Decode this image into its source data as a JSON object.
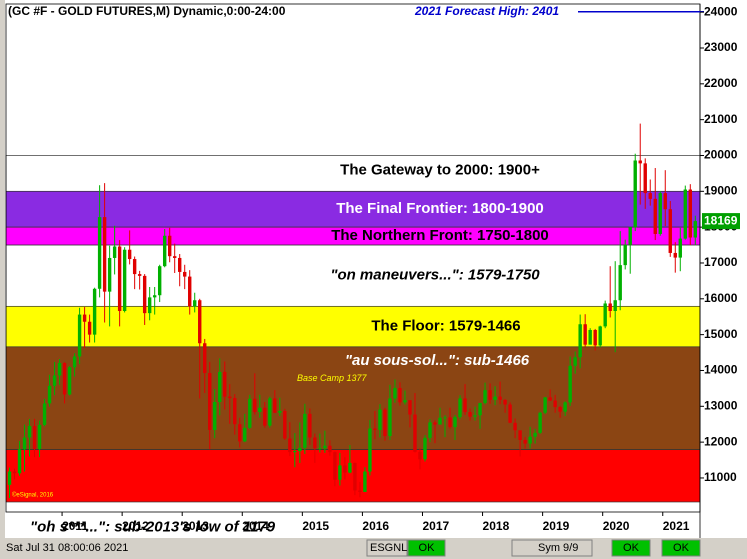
{
  "chart_data": {
    "type": "candlestick",
    "title": "(GC #F - GOLD FUTURES,M) Dynamic,0:00-24:00",
    "source": "©eSignal, 2016",
    "xlim": [
      2010,
      2021.62
    ],
    "xticks": [
      2011,
      2012,
      2013,
      2014,
      2015,
      2016,
      2017,
      2018,
      2019,
      2020,
      2021
    ],
    "ylim": [
      10050,
      24200
    ],
    "yticks": [
      11000,
      12000,
      13000,
      14000,
      15000,
      16000,
      17000,
      18000,
      19000,
      20000,
      21000,
      22000,
      23000,
      24000
    ],
    "up_color": "#00b000",
    "down_color": "#e00000",
    "last_price": 18169,
    "last_price_color": "#00a000",
    "bands": [
      {
        "from": 19000,
        "to": 20000,
        "color": "#ffffff",
        "label": "The Gateway to 2000:  1900+",
        "label_color": "#000000",
        "italic": false
      },
      {
        "from": 18000,
        "to": 19000,
        "color": "#8a2be2",
        "label": "The Final Frontier:  1800-1900",
        "label_color": "#ffffff",
        "italic": false
      },
      {
        "from": 17500,
        "to": 18000,
        "color": "#ff00ff",
        "label": "The Northern Front:  1750-1800",
        "label_color": "#000000",
        "italic": false
      },
      {
        "from": 15790,
        "to": 17500,
        "color": "#ffffff",
        "label": "\"on maneuvers...\":  1579-1750",
        "label_color": "#000000",
        "italic": true
      },
      {
        "from": 14660,
        "to": 15790,
        "color": "#ffff00",
        "label": "The Floor:  1579-1466",
        "label_color": "#000000",
        "italic": false
      },
      {
        "from": 11790,
        "to": 14660,
        "color": "#8b4513",
        "label": "\"au sous-sol...\":  sub-1466",
        "label_color": "#ffffff",
        "italic": true
      },
      {
        "from": 10330,
        "to": 11790,
        "color": "#ff0000",
        "label": "\"oh s***...\":  sub-2013's low of 1179",
        "label_color": "#000000",
        "italic": true
      }
    ],
    "annotations": [
      {
        "text": "Base Camp 1377",
        "value": 13770,
        "color": "#ffff00"
      },
      {
        "text": "2021 Forecast High:  2401",
        "value": 24010,
        "color": "#0000cc"
      }
    ],
    "ohlc": {
      "open": [
        10810,
        11180,
        11130,
        11800,
        12130,
        12450,
        11810,
        12480,
        13080,
        13570,
        13860,
        14210,
        13330,
        14090,
        14390,
        15560,
        15360,
        15000,
        16280,
        18280,
        16200,
        17140,
        17460,
        15660,
        17370,
        17110,
        16690,
        16640,
        15600,
        16040,
        16100,
        16910,
        17760,
        17190,
        17140,
        16750,
        16620,
        15790,
        15960,
        14760,
        13930,
        12340,
        13120,
        13960,
        13270,
        13230,
        12500,
        12020,
        12400,
        13210,
        12840,
        12960,
        12460,
        13220,
        12820,
        12870,
        12100,
        11720,
        11750,
        11840,
        12790,
        12130,
        11830,
        11830,
        11900,
        11720,
        10950,
        11350,
        11150,
        11420,
        10650,
        10610,
        11180,
        12380,
        12340,
        12910,
        12170,
        13220,
        13510,
        13110,
        13170,
        12770,
        11730,
        11520,
        12120,
        12550,
        12490,
        12680,
        12690,
        12420,
        12700,
        13220,
        12840,
        12710,
        12750,
        13090,
        13450,
        13180,
        13270,
        13180,
        13050,
        12540,
        12330,
        12060,
        11960,
        12150,
        12260,
        12820,
        13250,
        13160,
        12980,
        12850,
        13110,
        14130,
        14370,
        15290,
        14720,
        15130,
        14700,
        15230,
        15870,
        15660,
        15960,
        16940,
        17510,
        18000,
        19860,
        19780,
        18950,
        18790,
        17810,
        18950,
        18500,
        17280,
        17150,
        17680,
        19050,
        17710
      ],
      "high": [
        11290,
        11260,
        12030,
        12490,
        12650,
        12650,
        12600,
        13210,
        13880,
        14240,
        14320,
        14230,
        14120,
        14480,
        15750,
        15770,
        15560,
        16310,
        19170,
        19230,
        17480,
        18040,
        17640,
        17440,
        17910,
        17180,
        16780,
        16690,
        16330,
        16330,
        16950,
        17950,
        17980,
        17540,
        17250,
        16950,
        16800,
        16170,
        16000,
        14880,
        14240,
        13480,
        14340,
        14250,
        13620,
        13340,
        12680,
        12790,
        13320,
        13920,
        13320,
        13120,
        13270,
        13450,
        13240,
        12930,
        12560,
        12250,
        12550,
        13070,
        12940,
        12240,
        12240,
        12320,
        12050,
        11740,
        11700,
        11580,
        11920,
        11430,
        10890,
        11300,
        12620,
        12870,
        13060,
        12960,
        13600,
        13750,
        13670,
        13440,
        13170,
        13370,
        11830,
        12200,
        12640,
        12610,
        12960,
        12750,
        12960,
        12760,
        13310,
        13620,
        12940,
        12990,
        13100,
        13660,
        13640,
        13560,
        13690,
        13200,
        13110,
        12660,
        12180,
        12140,
        12430,
        12370,
        12850,
        13260,
        13470,
        13320,
        13010,
        13140,
        14390,
        14530,
        15560,
        15570,
        15180,
        15160,
        15250,
        15950,
        16910,
        17050,
        17890,
        17650,
        18010,
        20050,
        20890,
        19920,
        19330,
        19650,
        19010,
        19590,
        18730,
        17580,
        17980,
        19160,
        19200,
        18320
      ],
      "low": [
        10440,
        10960,
        11060,
        11180,
        11600,
        11580,
        11580,
        12440,
        12990,
        13310,
        13600,
        13080,
        13300,
        13830,
        14180,
        14630,
        14780,
        14780,
        16040,
        15340,
        15230,
        16680,
        15230,
        15620,
        16960,
        16270,
        16260,
        15270,
        15400,
        15560,
        15910,
        16880,
        17020,
        16720,
        16350,
        16270,
        15560,
        15620,
        13220,
        13370,
        11800,
        12110,
        12750,
        12910,
        12510,
        12210,
        11850,
        12000,
        12370,
        12770,
        12680,
        12400,
        12400,
        12810,
        12730,
        12060,
        11610,
        11300,
        11420,
        11670,
        11920,
        11420,
        11710,
        11700,
        11620,
        10770,
        10790,
        10960,
        11130,
        10520,
        10460,
        10710,
        11070,
        12080,
        12130,
        12040,
        12060,
        13100,
        13020,
        13050,
        12410,
        11710,
        11240,
        11460,
        12000,
        11970,
        12500,
        12140,
        12370,
        12060,
        12640,
        12760,
        12600,
        12600,
        12370,
        13050,
        13070,
        13030,
        13060,
        12820,
        12530,
        12110,
        11600,
        11820,
        11820,
        11960,
        12230,
        12780,
        13150,
        12820,
        12680,
        12730,
        13010,
        13910,
        14060,
        14650,
        14740,
        14560,
        14640,
        15180,
        15480,
        14510,
        15680,
        16820,
        16700,
        17890,
        18630,
        18510,
        18600,
        17640,
        17760,
        18030,
        17170,
        16730,
        16770,
        17650,
        17500,
        17500
      ],
      "close": [
        11180,
        11130,
        11800,
        12130,
        12450,
        11810,
        12480,
        13080,
        13570,
        13860,
        14210,
        13330,
        14090,
        14390,
        15560,
        15360,
        15000,
        16280,
        18280,
        16200,
        17140,
        17460,
        15660,
        17370,
        17110,
        16690,
        16640,
        15600,
        16040,
        16100,
        16910,
        17760,
        17190,
        17140,
        16750,
        16620,
        15790,
        15960,
        14760,
        13930,
        12340,
        13120,
        13960,
        13270,
        13230,
        12500,
        12020,
        12400,
        13210,
        12840,
        12960,
        12460,
        13220,
        12820,
        12870,
        12100,
        11720,
        11750,
        11840,
        12790,
        12130,
        11830,
        11830,
        11900,
        11720,
        10950,
        11350,
        11150,
        11420,
        10650,
        10610,
        11180,
        12380,
        12340,
        12910,
        12170,
        13220,
        13510,
        13110,
        13170,
        12770,
        11730,
        11520,
        12120,
        12550,
        12490,
        12680,
        12690,
        12420,
        12700,
        13220,
        12840,
        12710,
        12750,
        13090,
        13450,
        13180,
        13270,
        13180,
        13050,
        12540,
        12330,
        12060,
        11960,
        12150,
        12260,
        12820,
        13250,
        13160,
        12980,
        12850,
        13110,
        14130,
        14370,
        15290,
        14720,
        15130,
        14700,
        15230,
        15870,
        15660,
        15960,
        16940,
        17510,
        18000,
        19860,
        19780,
        18950,
        18790,
        17810,
        18950,
        18500,
        17280,
        17150,
        17680,
        19050,
        17710,
        18169
      ]
    }
  },
  "status_bar": {
    "time": "Sat Jul 31 08:00:06 2021",
    "items": [
      {
        "label": "ESGNL:",
        "status": "OK"
      },
      {
        "label": "Sym 9/9",
        "status": "OK"
      },
      {
        "label": null,
        "status": "OK"
      }
    ]
  }
}
